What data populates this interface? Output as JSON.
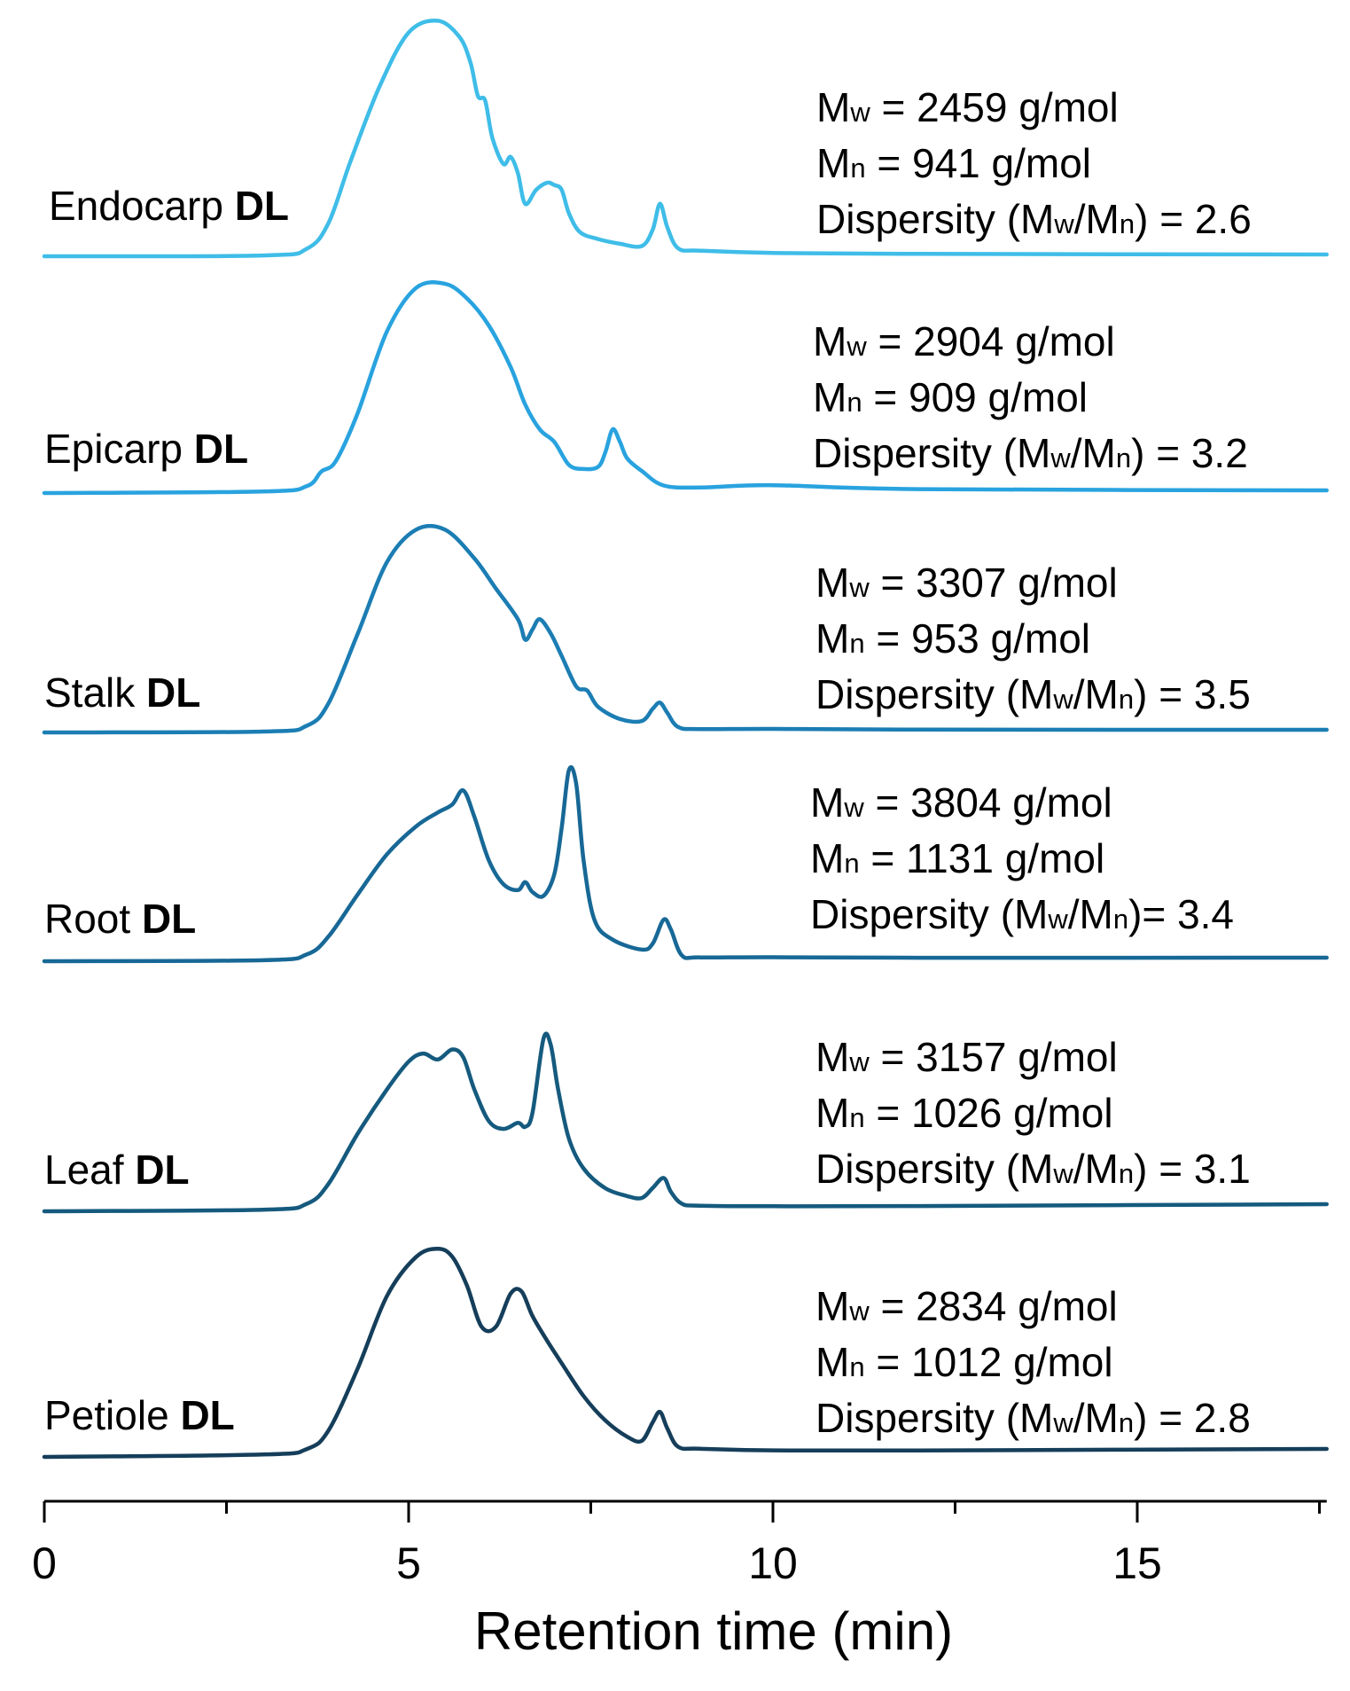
{
  "chart_data": {
    "type": "line",
    "title": "",
    "xlabel": "Retention time (min)",
    "ylabel": "",
    "xlim": [
      0,
      17.6
    ],
    "xticks": [
      0,
      5,
      10,
      15
    ],
    "xtick_labels": [
      "0",
      "5",
      "10",
      "15"
    ],
    "stacked_offset": true,
    "series": [
      {
        "name": "Endocarp",
        "label": "Endocarp",
        "label_bold": "DL",
        "color": "#3fbde8",
        "stats": {
          "mw_value": "= 2459 g/mol",
          "mn_value": "= 941 g/mol",
          "disp_value": ") = 2.6"
        },
        "x": [
          0,
          3,
          3.6,
          3.9,
          4.2,
          4.6,
          5.0,
          5.4,
          5.7,
          5.85,
          5.95,
          6.05,
          6.15,
          6.3,
          6.4,
          6.5,
          6.6,
          6.75,
          6.9,
          7.0,
          7.1,
          7.2,
          7.35,
          7.6,
          7.9,
          8.2,
          8.35,
          8.45,
          8.55,
          8.7,
          9.0,
          10,
          12,
          17.6
        ],
        "y": [
          0,
          0.002,
          0.03,
          0.14,
          0.4,
          0.72,
          0.95,
          1.0,
          0.93,
          0.82,
          0.68,
          0.66,
          0.5,
          0.39,
          0.42,
          0.35,
          0.22,
          0.28,
          0.31,
          0.3,
          0.28,
          0.18,
          0.1,
          0.07,
          0.05,
          0.04,
          0.11,
          0.22,
          0.12,
          0.03,
          0.02,
          0.01,
          0.005,
          0.0
        ]
      },
      {
        "name": "Epicarp",
        "label": "Epicarp",
        "label_bold": "DL",
        "color": "#29a3df",
        "stats": {
          "mw_value": "= 2904 g/mol",
          "mn_value": "= 909 g/mol",
          "disp_value": ") = 3.2"
        },
        "x": [
          0,
          3,
          3.6,
          3.8,
          4.0,
          4.3,
          4.7,
          5.1,
          5.5,
          5.8,
          6.1,
          6.4,
          6.6,
          6.8,
          7.0,
          7.2,
          7.4,
          7.6,
          7.7,
          7.8,
          7.9,
          8.0,
          8.2,
          8.5,
          9.0,
          10,
          12,
          17.6
        ],
        "y": [
          0,
          0.005,
          0.03,
          0.1,
          0.15,
          0.38,
          0.77,
          0.98,
          1.0,
          0.93,
          0.8,
          0.6,
          0.42,
          0.3,
          0.24,
          0.13,
          0.11,
          0.12,
          0.19,
          0.3,
          0.24,
          0.16,
          0.1,
          0.03,
          0.02,
          0.03,
          0.01,
          0.0
        ]
      },
      {
        "name": "Stalk",
        "label": "Stalk",
        "label_bold": "DL",
        "color": "#1b7db3",
        "stats": {
          "mw_value": "= 3307 g/mol",
          "mn_value": "= 953 g/mol",
          "disp_value": ") = 3.5"
        },
        "x": [
          0,
          3,
          3.6,
          3.9,
          4.3,
          4.7,
          5.1,
          5.5,
          5.9,
          6.2,
          6.5,
          6.6,
          6.7,
          6.8,
          6.95,
          7.1,
          7.3,
          7.45,
          7.6,
          7.9,
          8.2,
          8.35,
          8.45,
          8.55,
          8.7,
          9.0,
          10,
          12,
          17.6
        ],
        "y": [
          0,
          0.002,
          0.03,
          0.14,
          0.48,
          0.83,
          0.99,
          0.99,
          0.85,
          0.7,
          0.55,
          0.45,
          0.5,
          0.55,
          0.48,
          0.37,
          0.22,
          0.2,
          0.12,
          0.06,
          0.05,
          0.11,
          0.14,
          0.09,
          0.02,
          0.01,
          0.01,
          0.005,
          0.0
        ]
      },
      {
        "name": "Root",
        "label": "Root",
        "label_bold": "DL",
        "color": "#176896",
        "stats": {
          "mw_value": "= 3804 g/mol",
          "mn_value": "= 1131 g/mol",
          "disp_value": ")= 3.4"
        },
        "x": [
          0,
          3,
          3.6,
          3.9,
          4.3,
          4.7,
          5.1,
          5.4,
          5.6,
          5.75,
          5.9,
          6.1,
          6.3,
          6.5,
          6.6,
          6.7,
          6.85,
          7.0,
          7.1,
          7.2,
          7.3,
          7.4,
          7.55,
          7.8,
          8.2,
          8.35,
          8.5,
          8.6,
          8.75,
          9.0,
          10,
          12,
          17.6
        ],
        "y": [
          0,
          0.002,
          0.03,
          0.12,
          0.33,
          0.53,
          0.67,
          0.74,
          0.78,
          0.85,
          0.72,
          0.5,
          0.38,
          0.35,
          0.39,
          0.34,
          0.32,
          0.43,
          0.66,
          0.95,
          0.88,
          0.5,
          0.2,
          0.1,
          0.05,
          0.08,
          0.2,
          0.15,
          0.02,
          0.01,
          0.01,
          0.005,
          0.0
        ]
      },
      {
        "name": "Leaf",
        "label": "Leaf",
        "label_bold": "DL",
        "color": "#155a7e",
        "stats": {
          "mw_value": "= 3157 g/mol",
          "mn_value": "= 1026 g/mol",
          "disp_value": ") = 3.1"
        },
        "x": [
          0,
          3,
          3.6,
          3.9,
          4.3,
          4.7,
          5.0,
          5.2,
          5.4,
          5.6,
          5.75,
          5.9,
          6.1,
          6.3,
          6.5,
          6.6,
          6.7,
          6.85,
          6.95,
          7.05,
          7.2,
          7.4,
          7.7,
          8.0,
          8.2,
          8.35,
          8.5,
          8.6,
          8.75,
          9.0,
          10,
          12,
          17.6
        ],
        "y": [
          0,
          0.002,
          0.03,
          0.13,
          0.38,
          0.6,
          0.74,
          0.78,
          0.75,
          0.8,
          0.76,
          0.6,
          0.44,
          0.4,
          0.43,
          0.41,
          0.48,
          0.85,
          0.82,
          0.6,
          0.35,
          0.2,
          0.1,
          0.06,
          0.05,
          0.1,
          0.15,
          0.08,
          0.02,
          0.01,
          0.005,
          0.002,
          0.0
        ]
      },
      {
        "name": "Petiole",
        "label": "Petiole",
        "label_bold": "DL",
        "color": "#153e5a",
        "stats": {
          "mw_value": "= 2834 g/mol",
          "mn_value": "= 1012 g/mol",
          "disp_value": ") = 2.8"
        },
        "x": [
          0,
          3,
          3.6,
          3.9,
          4.3,
          4.7,
          5.1,
          5.4,
          5.6,
          5.8,
          6.0,
          6.2,
          6.4,
          6.55,
          6.7,
          6.9,
          7.1,
          7.4,
          7.7,
          8.0,
          8.2,
          8.35,
          8.45,
          8.55,
          8.7,
          9.0,
          10,
          12,
          17.6
        ],
        "y": [
          0,
          0.005,
          0.03,
          0.12,
          0.42,
          0.77,
          0.96,
          1.0,
          0.96,
          0.82,
          0.62,
          0.62,
          0.78,
          0.79,
          0.67,
          0.55,
          0.44,
          0.28,
          0.16,
          0.08,
          0.06,
          0.15,
          0.2,
          0.12,
          0.03,
          0.02,
          0.01,
          0.005,
          0.0
        ]
      }
    ]
  },
  "labels": {
    "mw_symbol": "M",
    "mw_sub": "w",
    "mn_symbol": "M",
    "mn_sub": "n",
    "disp_prefix": "Dispersity (",
    "slash": "/"
  }
}
